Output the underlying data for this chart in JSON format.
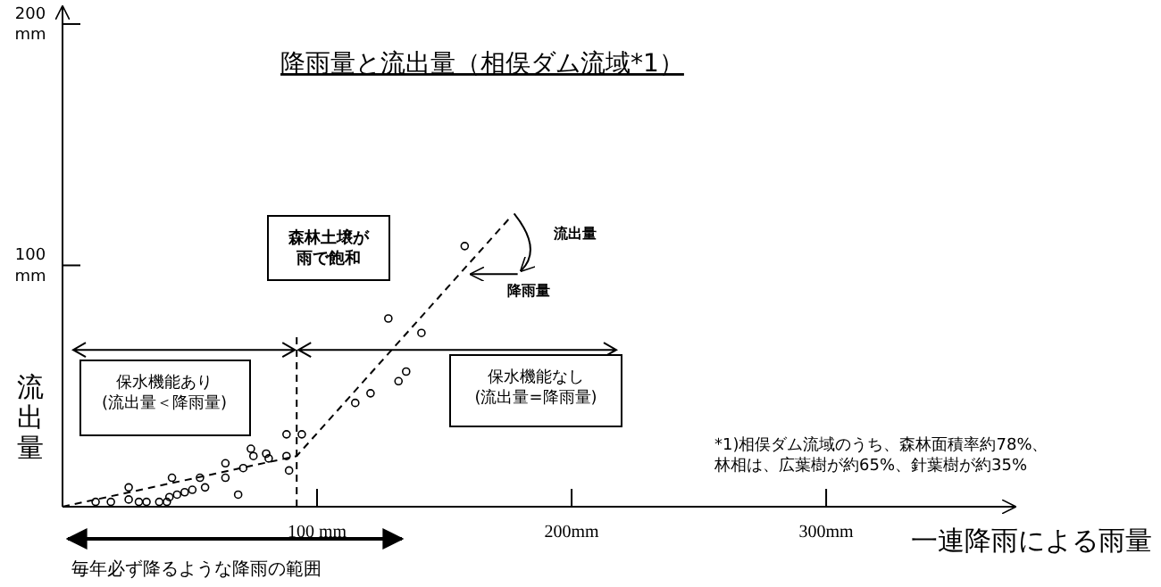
{
  "chart_data": {
    "type": "scatter",
    "title": "降雨量と流出量（相俣ダム流域*1）",
    "xlabel": "一連降雨による雨量",
    "ylabel": "流出量",
    "xlim": [
      0,
      374
    ],
    "ylim": [
      0,
      207
    ],
    "xticks": [
      {
        "value": 100,
        "label": "100 mm"
      },
      {
        "value": 200,
        "label": "200mm"
      },
      {
        "value": 300,
        "label": "300mm"
      }
    ],
    "yticks": [
      {
        "value": 100,
        "label": "100 mm"
      },
      {
        "value": 200,
        "label": "200 mm"
      }
    ],
    "marker": "circle",
    "series": [
      {
        "color": "#000000",
        "x": [
          13,
          19,
          26,
          26,
          30,
          33,
          38,
          41,
          42,
          45,
          48,
          51,
          43,
          54,
          56,
          64,
          64,
          69,
          71,
          74,
          75,
          80,
          81,
          88,
          88,
          89,
          94,
          115,
          121,
          132,
          135,
          128,
          141,
          158
        ],
        "values": [
          2,
          2,
          8,
          3,
          2,
          2,
          2,
          2,
          4,
          5,
          6,
          7,
          12,
          12,
          8,
          18,
          12,
          5,
          16,
          24,
          21,
          22,
          20,
          30,
          21,
          15,
          30,
          43,
          47,
          52,
          56,
          78,
          72,
          108
        ]
      },
      {
        "type": "line",
        "color": "#000000",
        "line_style": "dashed",
        "marker": "none",
        "x": [
          0,
          92,
          176
        ],
        "values": [
          0,
          21,
          120
        ]
      }
    ],
    "ref_lines": [
      {
        "axis": "x",
        "value": 92,
        "line_style": "dashed"
      }
    ],
    "annotations": [
      "森林土壌が雨で飽和",
      "保水機能あり\n(流出量＜降雨量)",
      "保水機能なし\n(流出量=降雨量)",
      "流出量",
      "降雨量",
      "*1)相俣ダム流域のうち、森林面積率約78%、林相は、広葉樹が約65%、針葉樹が約35%",
      "毎年必ず降るような降雨の範囲"
    ]
  }
}
